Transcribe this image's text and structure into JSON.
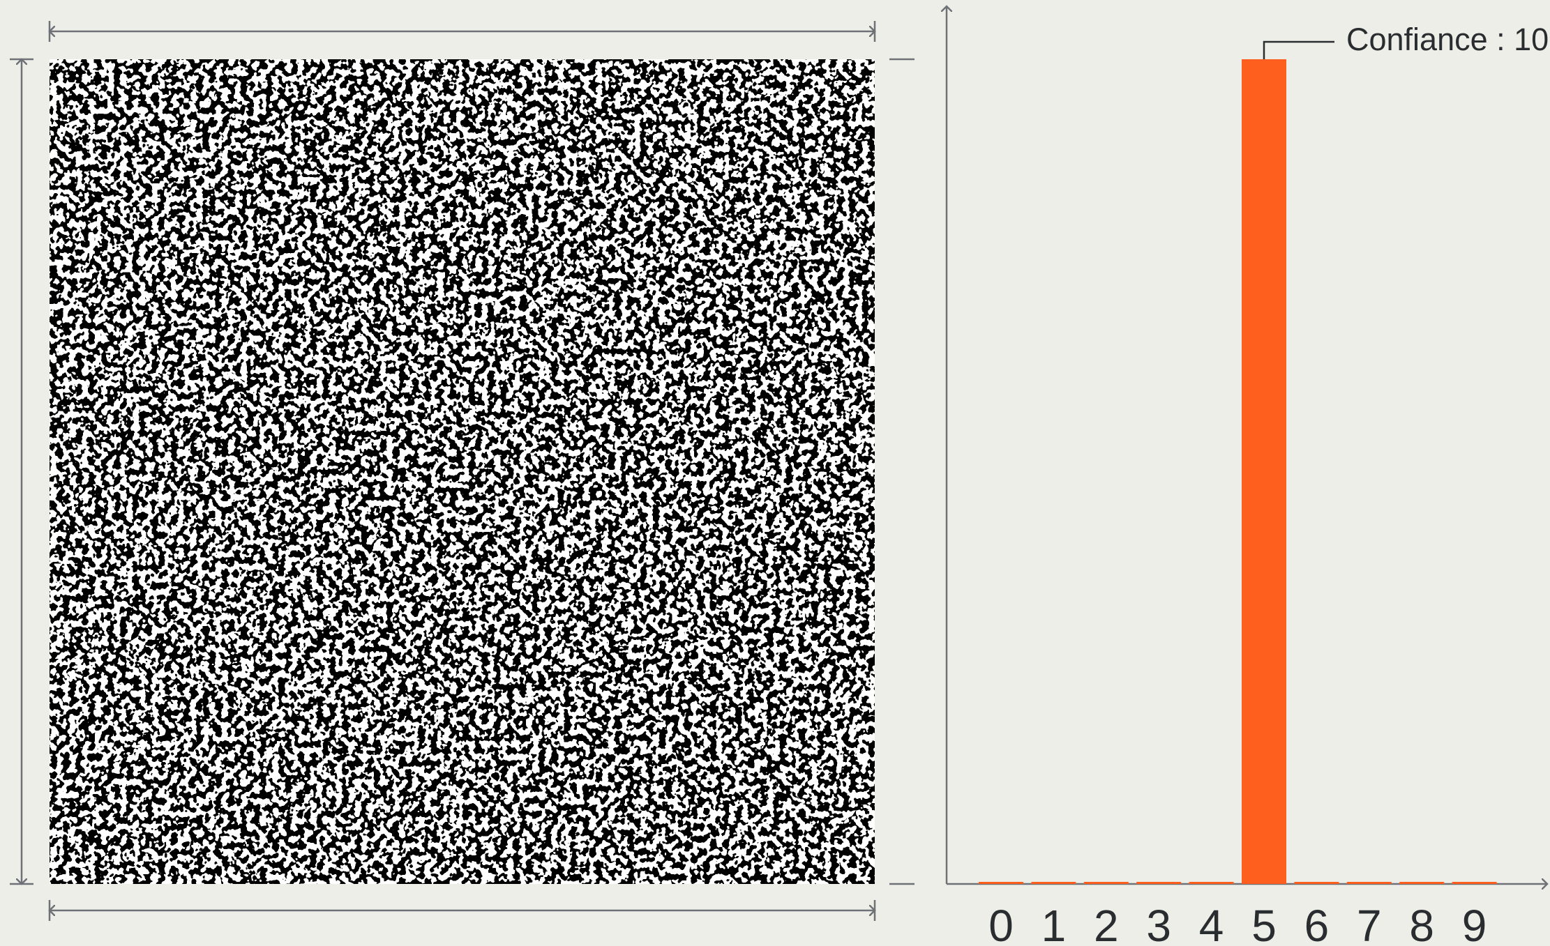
{
  "chart_data": {
    "type": "bar",
    "categories": [
      "0",
      "1",
      "2",
      "3",
      "4",
      "5",
      "6",
      "7",
      "8",
      "9"
    ],
    "values": [
      0,
      0,
      0,
      0,
      0,
      100,
      0,
      0,
      0,
      0
    ],
    "color": "#fe5f1e",
    "ylim": [
      0,
      100
    ],
    "annotation": "Confiance : 10"
  }
}
